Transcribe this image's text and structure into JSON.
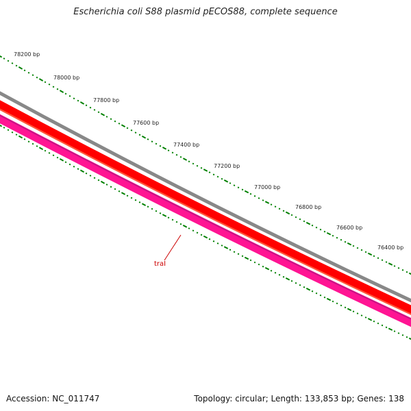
{
  "title": "Escherichia coli S88 plasmid pECOS88, complete sequence",
  "footer": {
    "accession": "Accession: NC_011747",
    "summary": "Topology: circular; Length: 133,853 bp; Genes: 138"
  },
  "map": {
    "ticks": [
      {
        "label": "78200 bp"
      },
      {
        "label": "78000 bp"
      },
      {
        "label": "77800 bp"
      },
      {
        "label": "77600 bp"
      },
      {
        "label": "77400 bp"
      },
      {
        "label": "77200 bp"
      },
      {
        "label": "77000 bp"
      },
      {
        "label": "76800 bp"
      },
      {
        "label": "76600 bp"
      },
      {
        "label": "76400 bp"
      }
    ],
    "genes": [
      {
        "label": "traI"
      }
    ],
    "colors": {
      "backbone": "#888888",
      "forward_feature": "#ff0000",
      "reverse_feature": "#ff1493",
      "ticks": "#008000",
      "gene_label": "#cc0000"
    }
  }
}
